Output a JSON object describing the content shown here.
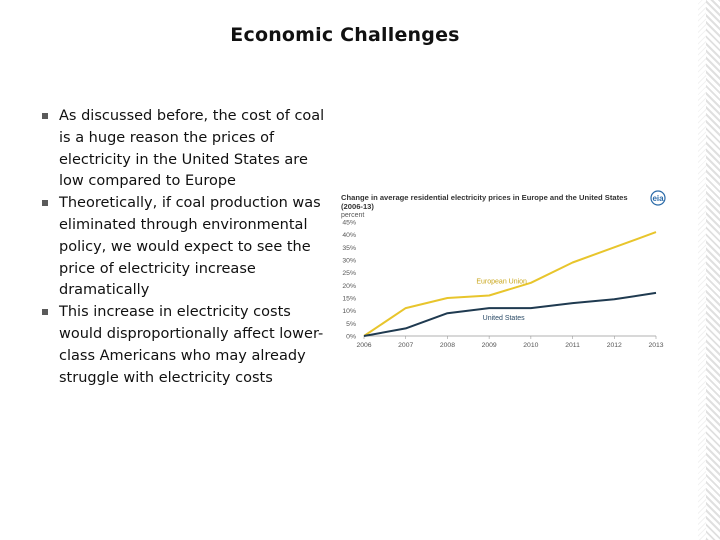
{
  "slide": {
    "title": "Economic Challenges",
    "bullets": [
      "As discussed before, the cost of coal is a huge reason the prices of electricity in the United States are low compared to Europe",
      "Theoretically, if coal production was eliminated through environmental policy, we would expect to see the price of electricity increase dramatically",
      "This increase in electricity costs would disproportionally affect lower-class Americans who may already struggle with electricity costs"
    ]
  },
  "chart_data": {
    "type": "line",
    "title": "Change in average residential electricity prices in Europe and the United States (2006-13)",
    "ylabel": "percent",
    "logo": "eia",
    "x": [
      "2006",
      "2007",
      "2008",
      "2009",
      "2010",
      "2011",
      "2012",
      "2013"
    ],
    "y_ticks": [
      "0%",
      "5%",
      "10%",
      "15%",
      "20%",
      "25%",
      "30%",
      "35%",
      "40%",
      "45%"
    ],
    "ylim": [
      0,
      45
    ],
    "series": [
      {
        "name": "European Union",
        "color": "#e8c52c",
        "values": [
          0,
          11,
          15,
          16,
          21,
          29,
          35,
          41
        ]
      },
      {
        "name": "United States",
        "color": "#1f3a50",
        "values": [
          0,
          3,
          9,
          11,
          11,
          13,
          14.5,
          17
        ]
      }
    ],
    "grid": false
  }
}
